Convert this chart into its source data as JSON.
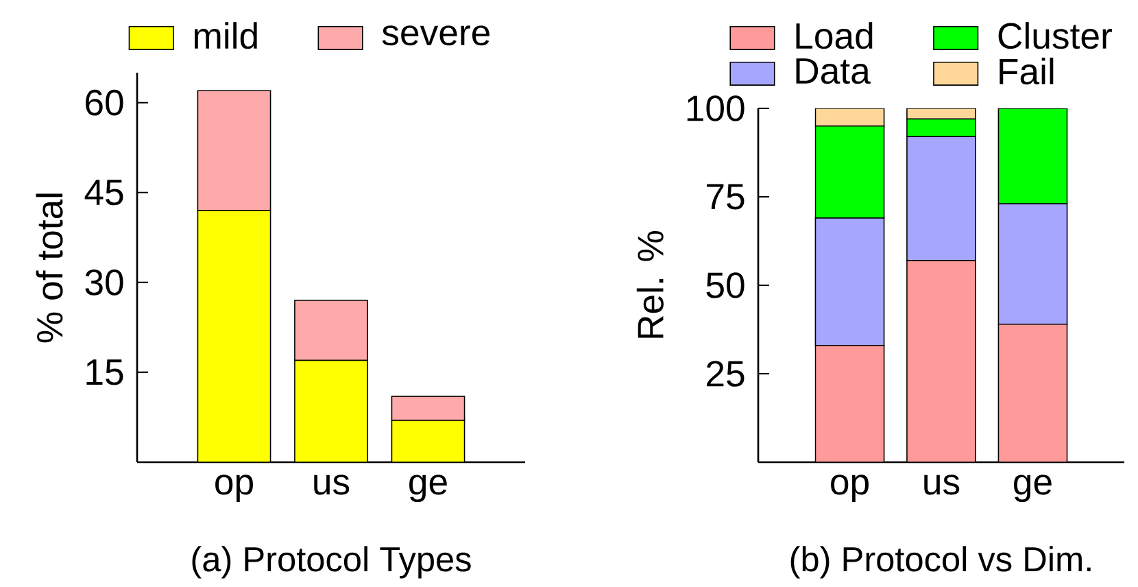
{
  "chart_data": [
    {
      "type": "bar",
      "stacked": true,
      "title": "(a) Protocol Types",
      "ylabel": "% of total",
      "categories": [
        "op",
        "us",
        "ge"
      ],
      "series": [
        {
          "name": "mild",
          "color": "#ffff00",
          "values": [
            42,
            17,
            7
          ]
        },
        {
          "name": "severe",
          "color": "#ffaaaa",
          "values": [
            20,
            10,
            4
          ]
        }
      ],
      "ylim": [
        0,
        65
      ],
      "yticks": [
        15,
        30,
        45,
        60
      ],
      "legend": "top"
    },
    {
      "type": "bar",
      "stacked": true,
      "title": "(b) Protocol vs Dim.",
      "ylabel": "Rel. %",
      "categories": [
        "op",
        "us",
        "ge"
      ],
      "series": [
        {
          "name": "Load",
          "color": "#ff9a9a",
          "values": [
            33,
            57,
            39
          ]
        },
        {
          "name": "Data",
          "color": "#a6a6ff",
          "values": [
            36,
            35,
            34
          ]
        },
        {
          "name": "Cluster",
          "color": "#00ff00",
          "values": [
            26,
            5,
            27
          ]
        },
        {
          "name": "Fail",
          "color": "#ffd899",
          "values": [
            5,
            3,
            0
          ]
        }
      ],
      "ylim": [
        0,
        100
      ],
      "yticks": [
        25,
        50,
        75,
        100
      ],
      "legend": "top"
    }
  ]
}
